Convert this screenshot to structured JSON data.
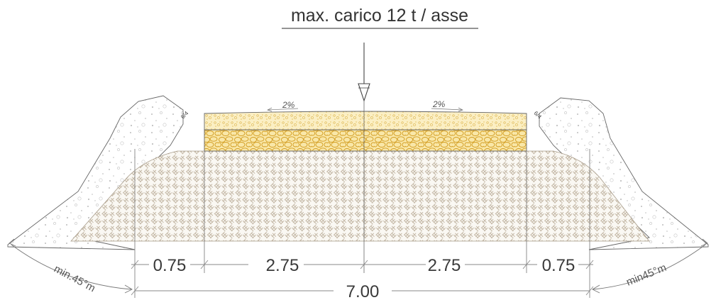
{
  "title": "max. carico 12 t / asse",
  "slopes": {
    "left": "2%",
    "right": "2%"
  },
  "shoulder_slope": {
    "left": "6/4",
    "right": "6/4"
  },
  "angles": {
    "left": "min.45°m",
    "right": "min45°m"
  },
  "dimensions": {
    "segments": [
      "0.75",
      "2.75",
      "2.75",
      "0.75"
    ],
    "total": "7.00"
  },
  "colors": {
    "surface_layer": "#f7e7a6",
    "base_layer": "#f4d97a",
    "gravel_stroke": "#d9a82e",
    "embankment_hatch": "#c8bba8",
    "soil_dots": "#b8b8b8",
    "outline": "#555555"
  }
}
